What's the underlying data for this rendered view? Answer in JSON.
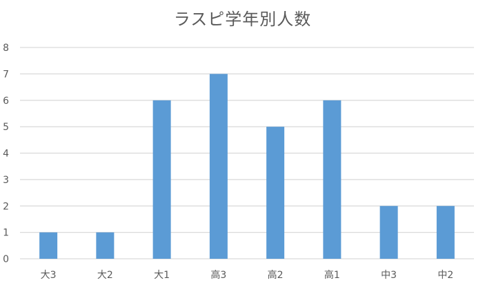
{
  "chart_data": {
    "type": "bar",
    "title": "ラスピ学年別人数",
    "categories": [
      "大3",
      "大2",
      "大1",
      "高3",
      "高2",
      "高1",
      "中3",
      "中2"
    ],
    "series": [
      {
        "values": [
          1,
          1,
          6,
          7,
          5,
          6,
          2,
          2
        ]
      }
    ],
    "y_ticks": [
      "0",
      "1",
      "2",
      "3",
      "4",
      "5",
      "6",
      "7",
      "8"
    ],
    "ylim": [
      0,
      8
    ],
    "grid": true,
    "legend": "none",
    "bar_color": "#5b9bd5",
    "grid_color": "#d9d9d9",
    "text_color": "#595959"
  }
}
